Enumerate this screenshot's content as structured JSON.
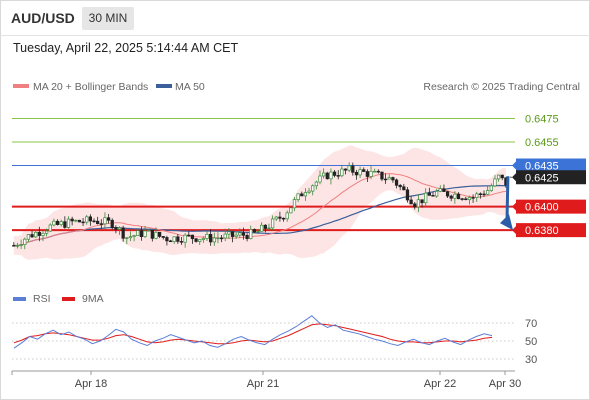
{
  "header": {
    "pair": "AUD/USD",
    "timeframe": "30 MIN",
    "timestamp": "Tuesday, April 22, 2025 5:14:44 AM CET"
  },
  "colors": {
    "ma20": "#f08080",
    "ma50": "#3a5f9a",
    "bands": "#fde0e0",
    "candle_up": "#3a8a3a",
    "candle_down": "#222222",
    "resistance": "#8bc34a",
    "support": "#e01b1b",
    "current_price": "#3b73d6",
    "arrow": "#2b5ea7",
    "rsi": "#5b7ed6",
    "rsi_ma": "#e01b1b"
  },
  "chart_data": [
    {
      "type": "candlestick",
      "title": "",
      "legend": [
        "MA 20 + Bollinger Bands",
        "MA 50"
      ],
      "watermark": "Research © 2025 Trading Central",
      "legend_position": "top-left",
      "x_tick_labels": [
        "Apr 18",
        "Apr 21",
        "Apr 22",
        "Apr 30"
      ],
      "ylim": [
        0.6335,
        0.6495
      ],
      "price_path": [
        [
          0,
          0.6367
        ],
        [
          4,
          0.6375
        ],
        [
          10,
          0.6383
        ],
        [
          16,
          0.6387
        ],
        [
          22,
          0.6388
        ],
        [
          27,
          0.6386
        ],
        [
          31,
          0.6374
        ],
        [
          36,
          0.6378
        ],
        [
          42,
          0.6373
        ],
        [
          48,
          0.6374
        ],
        [
          54,
          0.6373
        ],
        [
          60,
          0.6375
        ],
        [
          66,
          0.6377
        ],
        [
          70,
          0.6384
        ],
        [
          74,
          0.6393
        ],
        [
          80,
          0.6415
        ],
        [
          86,
          0.6427
        ],
        [
          92,
          0.6431
        ],
        [
          98,
          0.6428
        ],
        [
          104,
          0.6423
        ],
        [
          110,
          0.6403
        ],
        [
          116,
          0.6412
        ],
        [
          122,
          0.641
        ],
        [
          126,
          0.6408
        ],
        [
          130,
          0.6414
        ],
        [
          133,
          0.6425
        ],
        [
          135,
          0.642
        ]
      ],
      "levels": [
        {
          "price": 0.6475,
          "label": "0.6475",
          "kind": "resistance"
        },
        {
          "price": 0.6455,
          "label": "0.6455",
          "kind": "resistance"
        },
        {
          "price": 0.6435,
          "label": "0.6435",
          "kind": "resistance-line"
        },
        {
          "price": 0.6425,
          "label": "0.6425",
          "kind": "current"
        },
        {
          "price": 0.64,
          "label": "0.6400",
          "kind": "support"
        },
        {
          "price": 0.638,
          "label": "0.6380",
          "kind": "support"
        }
      ],
      "projection": {
        "from": 0.6425,
        "to": 0.638,
        "direction": "down"
      }
    },
    {
      "type": "line",
      "title": "",
      "legend": [
        "RSI",
        "9MA"
      ],
      "ylim": [
        20,
        80
      ],
      "y_ticks": [
        70,
        50,
        30
      ],
      "rsi_values": [
        42,
        48,
        55,
        52,
        58,
        62,
        57,
        60,
        55,
        52,
        47,
        50,
        56,
        63,
        60,
        52,
        48,
        45,
        50,
        53,
        57,
        54,
        51,
        48,
        50,
        45,
        43,
        47,
        52,
        55,
        51,
        48,
        46,
        52,
        57,
        61,
        66,
        72,
        78,
        70,
        65,
        68,
        62,
        60,
        58,
        55,
        52,
        50,
        47,
        45,
        49,
        52,
        48,
        46,
        50,
        53,
        49,
        46,
        51,
        55,
        58,
        56
      ],
      "rsi_ma_values": [
        48,
        51,
        55,
        56,
        58,
        59,
        58,
        57,
        55,
        53,
        51,
        51,
        53,
        56,
        57,
        55,
        52,
        49,
        48,
        49,
        51,
        52,
        51,
        50,
        49,
        48,
        47,
        47,
        48,
        50,
        51,
        50,
        49,
        50,
        53,
        56,
        60,
        64,
        68,
        69,
        68,
        67,
        65,
        63,
        61,
        59,
        57,
        55,
        52,
        50,
        49,
        49,
        48,
        48,
        49,
        50,
        50,
        49,
        50,
        51,
        53,
        54
      ]
    }
  ]
}
